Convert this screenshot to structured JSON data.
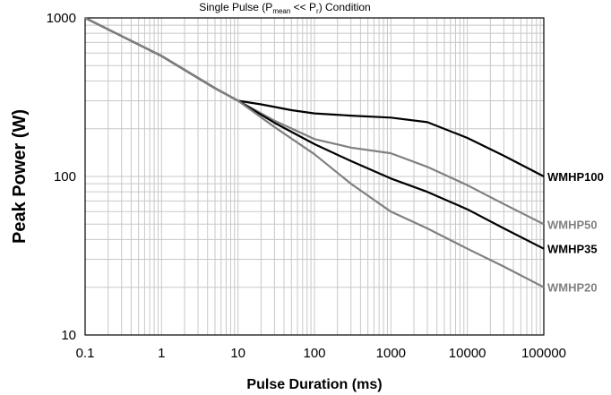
{
  "chart_data": {
    "type": "line",
    "title": {
      "prefix": "Single Pulse (P",
      "sub1": "mean",
      "middle": " << P",
      "sub2": "r",
      "suffix": ") Condition"
    },
    "xlabel": "Pulse Duration (ms)",
    "ylabel": "Peak Power (W)",
    "xscale": "log",
    "yscale": "log",
    "xlim": [
      0.1,
      100000
    ],
    "ylim": [
      10,
      1000
    ],
    "grid": true,
    "x_ticks": [
      "0.1",
      "1",
      "10",
      "100",
      "1000",
      "10000",
      "100000"
    ],
    "y_ticks": [
      "10",
      "100",
      "1000"
    ],
    "colors": {
      "black": "#000000",
      "gray": "#808080",
      "grid": "#c8c8c8"
    },
    "series": [
      {
        "name": "WMHP100",
        "color": "#000000",
        "points": [
          [
            0.1,
            1000
          ],
          [
            1,
            575
          ],
          [
            5,
            360
          ],
          [
            10,
            300
          ],
          [
            20,
            285
          ],
          [
            50,
            262
          ],
          [
            100,
            250
          ],
          [
            300,
            242
          ],
          [
            1000,
            235
          ],
          [
            3000,
            220
          ],
          [
            10000,
            175
          ],
          [
            30000,
            135
          ],
          [
            100000,
            100
          ]
        ]
      },
      {
        "name": "WMHP50",
        "color": "#808080",
        "points": [
          [
            0.1,
            1000
          ],
          [
            1,
            575
          ],
          [
            5,
            360
          ],
          [
            10,
            300
          ],
          [
            30,
            225
          ],
          [
            100,
            172
          ],
          [
            300,
            152
          ],
          [
            1000,
            140
          ],
          [
            3000,
            115
          ],
          [
            10000,
            88
          ],
          [
            30000,
            67
          ],
          [
            100000,
            50
          ]
        ]
      },
      {
        "name": "WMHP35",
        "color": "#000000",
        "points": [
          [
            0.1,
            1000
          ],
          [
            1,
            575
          ],
          [
            5,
            360
          ],
          [
            10,
            300
          ],
          [
            30,
            218
          ],
          [
            100,
            160
          ],
          [
            300,
            125
          ],
          [
            1000,
            97
          ],
          [
            3000,
            80
          ],
          [
            10000,
            62
          ],
          [
            30000,
            47
          ],
          [
            100000,
            35
          ]
        ]
      },
      {
        "name": "WMHP20",
        "color": "#808080",
        "points": [
          [
            0.1,
            1000
          ],
          [
            1,
            575
          ],
          [
            5,
            360
          ],
          [
            10,
            300
          ],
          [
            30,
            205
          ],
          [
            100,
            138
          ],
          [
            300,
            90
          ],
          [
            1000,
            60
          ],
          [
            3000,
            47
          ],
          [
            10000,
            35
          ],
          [
            30000,
            27
          ],
          [
            100000,
            20
          ]
        ]
      }
    ]
  }
}
